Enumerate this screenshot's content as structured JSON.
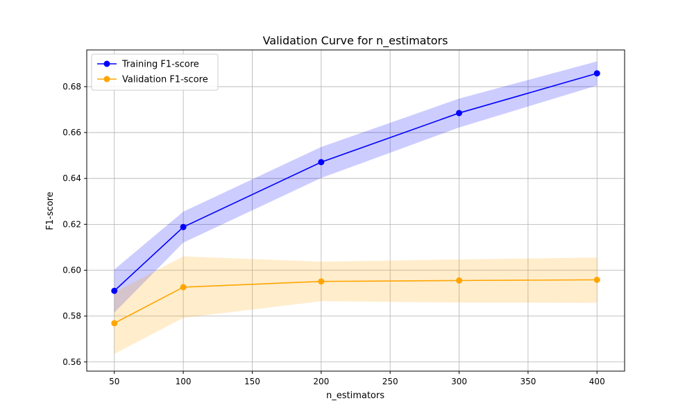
{
  "chart_data": {
    "type": "line",
    "title": "Validation Curve for n_estimators",
    "xlabel": "n_estimators",
    "ylabel": "F1-score",
    "x": [
      50,
      100,
      200,
      300,
      400
    ],
    "xlim": [
      30,
      420
    ],
    "ylim": [
      0.556,
      0.696
    ],
    "xticks": [
      50,
      100,
      150,
      200,
      250,
      300,
      350,
      400
    ],
    "yticks": [
      0.56,
      0.58,
      0.6,
      0.62,
      0.64,
      0.66,
      0.68
    ],
    "ytick_labels": [
      "0.56",
      "0.58",
      "0.60",
      "0.62",
      "0.64",
      "0.66",
      "0.68"
    ],
    "grid": true,
    "legend_position": "top-left",
    "series": [
      {
        "name": "Training F1-score",
        "color": "#0000ff",
        "band_color": "#0000ff",
        "values": [
          0.591,
          0.6188,
          0.6471,
          0.6685,
          0.6858
        ],
        "band_lower": [
          0.5815,
          0.612,
          0.6402,
          0.6622,
          0.6805
        ],
        "band_upper": [
          0.6003,
          0.6255,
          0.6537,
          0.6748,
          0.691
        ]
      },
      {
        "name": "Validation F1-score",
        "color": "#ffa500",
        "band_color": "#ffa500",
        "values": [
          0.5769,
          0.5926,
          0.5951,
          0.5955,
          0.5958
        ],
        "band_lower": [
          0.5635,
          0.5792,
          0.5865,
          0.5859,
          0.5858
        ],
        "band_upper": [
          0.5903,
          0.606,
          0.6037,
          0.6047,
          0.6055
        ]
      }
    ]
  }
}
